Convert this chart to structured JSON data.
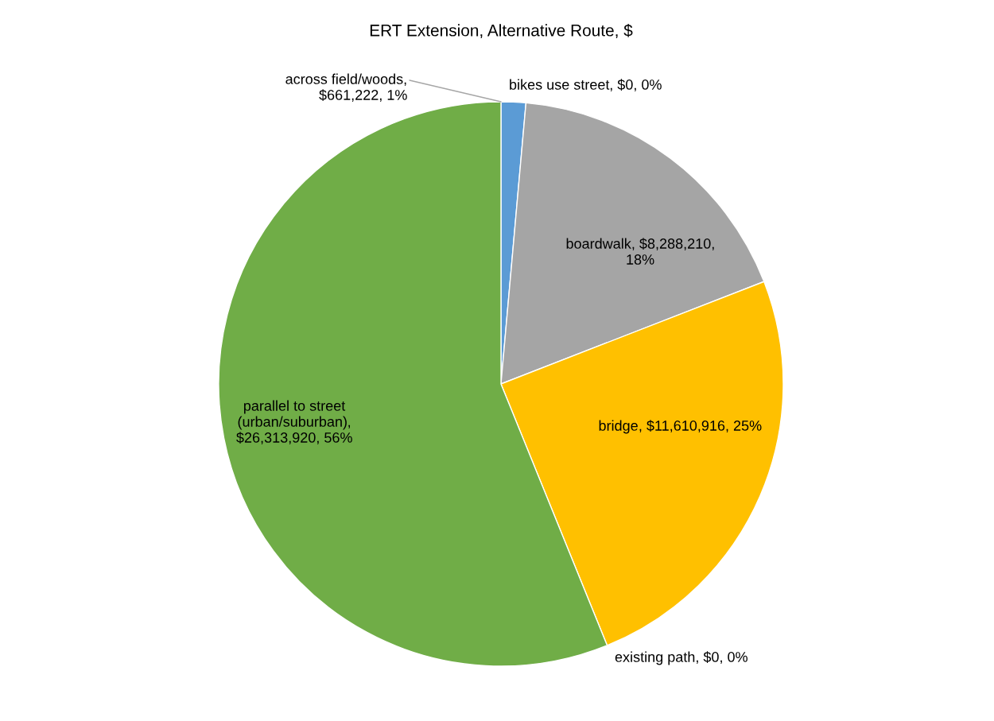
{
  "chart_data": {
    "type": "pie",
    "title": "ERT Extension, Alternative Route, $",
    "categories": [
      "across field/woods",
      "bikes use street",
      "boardwalk",
      "bridge",
      "existing path",
      "parallel to street\n(urban/suburban)"
    ],
    "values": [
      661222,
      0,
      8288210,
      11610916,
      0,
      26313920
    ],
    "colors": [
      "#5b9bd5",
      "#ed7d31",
      "#a5a5a5",
      "#ffc000",
      "#4472c4",
      "#70ad47"
    ],
    "value_labels": [
      ",\n$661,222, 1%",
      ", $0, 0%",
      ", $8,288,210,\n18%",
      ", $11,610,916, 25%",
      ", $0, 0%",
      ",\n$26,313,920, 56%"
    ],
    "legend": false
  }
}
